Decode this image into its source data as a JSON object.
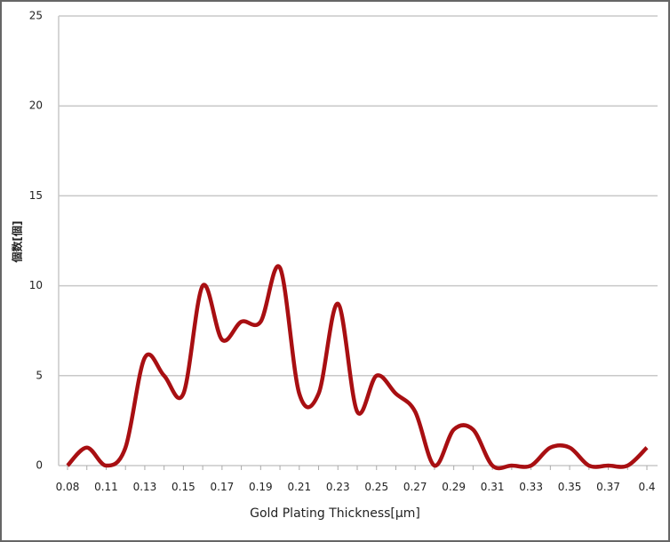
{
  "chart_data": {
    "type": "line",
    "y_label": "個数[個]",
    "x_label": "Gold Plating Thickness[µm]",
    "categories": [
      "0.08",
      null,
      "0.11",
      null,
      "0.13",
      null,
      "0.15",
      null,
      "0.17",
      null,
      "0.19",
      null,
      "0.21",
      null,
      "0.23",
      null,
      "0.25",
      null,
      "0.27",
      null,
      "0.29",
      null,
      "0.31",
      null,
      "0.33",
      null,
      "0.35",
      null,
      "0.37",
      null,
      "0.4"
    ],
    "series": [
      {
        "color": "#a80f12",
        "values": [
          0,
          1,
          0,
          1,
          6,
          5,
          4,
          10,
          7,
          8,
          8,
          11,
          4,
          4,
          9,
          3,
          5,
          4,
          3,
          0,
          2,
          2,
          0,
          0,
          0,
          1,
          1,
          0,
          0,
          0,
          1
        ]
      }
    ],
    "ylim": [
      0,
      25
    ],
    "yticks": [
      0,
      5,
      10,
      15,
      20,
      25
    ],
    "grid": true
  }
}
